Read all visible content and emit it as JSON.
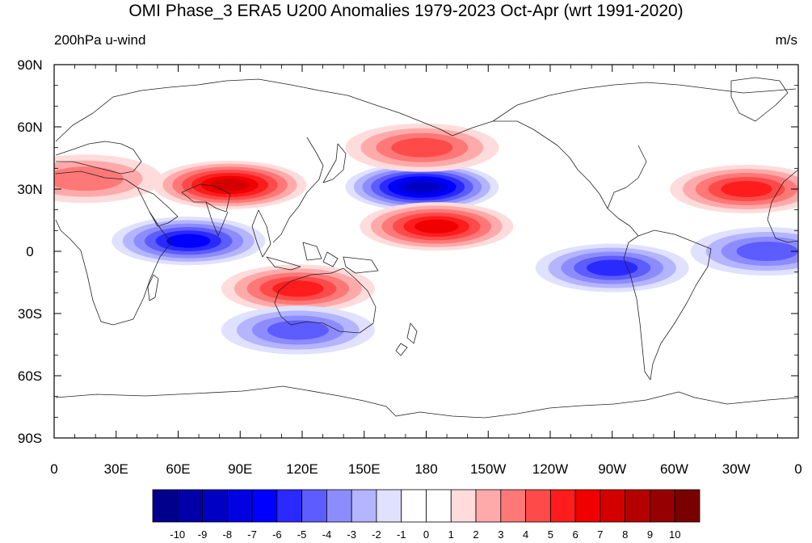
{
  "title": "OMI Phase_3 ERA5 U200 Anomalies 1979-2023 Oct-Apr (wrt 1991-2020)",
  "left_string": "200hPa u-wind",
  "right_string": "m/s",
  "map": {
    "projection": "cylindrical-equidistant",
    "lon_range": [
      0,
      360
    ],
    "lat_range": [
      -90,
      90
    ],
    "lat_tick_labels": [
      "90N",
      "60N",
      "30N",
      "0",
      "30S",
      "60S",
      "90S"
    ],
    "lon_tick_labels": [
      "0",
      "30E",
      "60E",
      "90E",
      "120E",
      "150E",
      "180",
      "150W",
      "120W",
      "90W",
      "60W",
      "30W",
      "0"
    ],
    "anomaly_centers": [
      {
        "lon": 85,
        "lat": 32,
        "value": 7,
        "sign": "positive"
      },
      {
        "lon": 178,
        "lat": 31,
        "value": -8,
        "sign": "negative"
      },
      {
        "lon": 178,
        "lat": 50,
        "value": 4,
        "sign": "positive"
      },
      {
        "lon": 185,
        "lat": 12,
        "value": 6,
        "sign": "positive"
      },
      {
        "lon": 65,
        "lat": 5,
        "value": -6,
        "sign": "negative"
      },
      {
        "lon": 118,
        "lat": -18,
        "value": 5,
        "sign": "positive"
      },
      {
        "lon": 118,
        "lat": -38,
        "value": -4,
        "sign": "negative"
      },
      {
        "lon": 270,
        "lat": -8,
        "value": -5,
        "sign": "negative"
      },
      {
        "lon": 345,
        "lat": 0,
        "value": -4,
        "sign": "negative"
      },
      {
        "lon": 335,
        "lat": 30,
        "value": 5,
        "sign": "positive"
      },
      {
        "lon": 15,
        "lat": 35,
        "value": 3,
        "sign": "positive"
      }
    ]
  },
  "colorbar": {
    "labels": [
      "-10",
      "-9",
      "-8",
      "-7",
      "-6",
      "-5",
      "-4",
      "-3",
      "-2",
      "-1",
      "0",
      "1",
      "2",
      "3",
      "4",
      "5",
      "6",
      "7",
      "8",
      "9",
      "10"
    ],
    "colors": [
      "#00008c",
      "#0000a8",
      "#0000c4",
      "#0000e0",
      "#0000ff",
      "#2a2aff",
      "#5c5cff",
      "#8c8cff",
      "#b4b4ff",
      "#e0e0ff",
      "#ffffff",
      "#ffffff",
      "#ffdcdc",
      "#ffaaaa",
      "#ff7878",
      "#ff4a4a",
      "#ff1c1c",
      "#f00000",
      "#d40000",
      "#b40000",
      "#960000",
      "#7a0000"
    ]
  }
}
